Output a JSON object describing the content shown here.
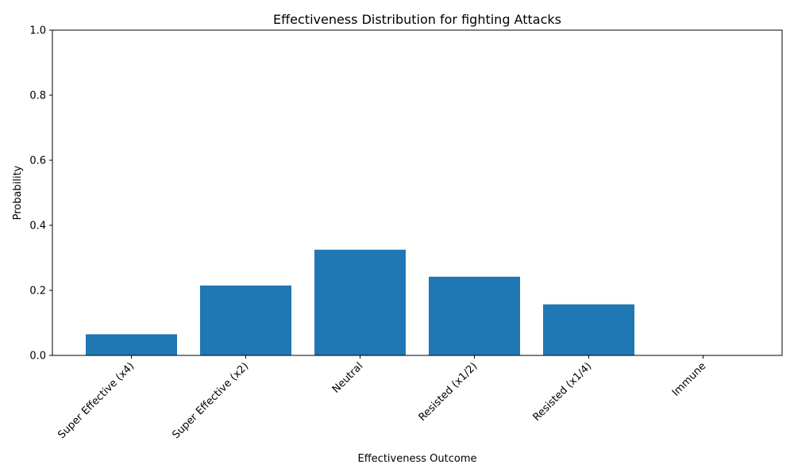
{
  "chart_data": {
    "type": "bar",
    "title": "Effectiveness Distribution for fighting Attacks",
    "xlabel": "Effectiveness Outcome",
    "ylabel": "Probability",
    "categories": [
      "Super Effective (x4)",
      "Super Effective (x2)",
      "Neutral",
      "Resisted (x1/2)",
      "Resisted (x1/4)",
      "Immune"
    ],
    "values": [
      0.065,
      0.215,
      0.325,
      0.242,
      0.157,
      0.0
    ],
    "ylim": [
      0,
      1.0
    ],
    "yticks": [
      0.0,
      0.2,
      0.4,
      0.6,
      0.8,
      1.0
    ],
    "ytick_labels": [
      "0.0",
      "0.2",
      "0.4",
      "0.6",
      "0.8",
      "1.0"
    ],
    "bar_color": "#1f77b4",
    "grid": false,
    "xtick_rotation": 45
  }
}
